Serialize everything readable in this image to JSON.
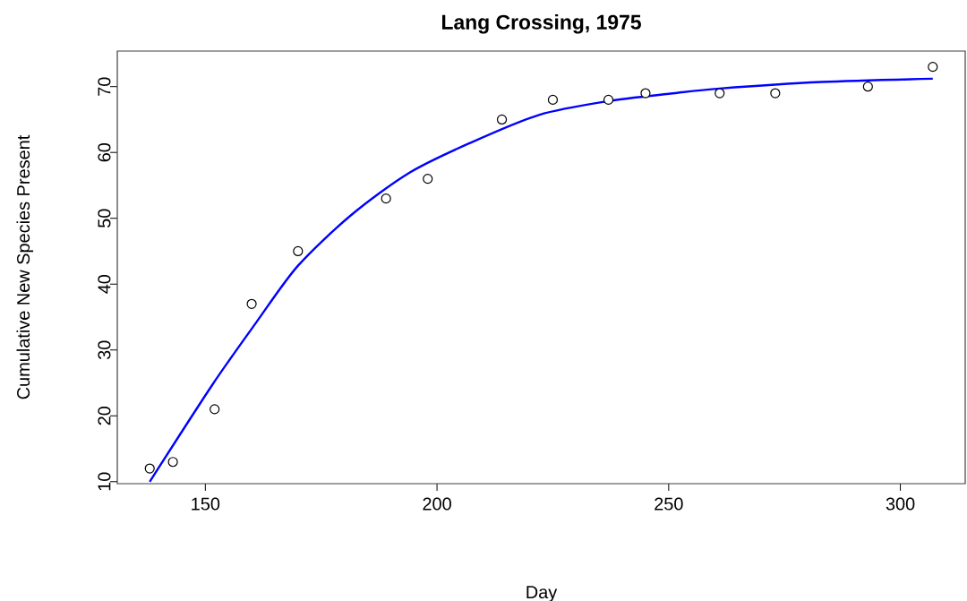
{
  "chart_data": {
    "type": "scatter",
    "title": "Lang Crossing, 1975",
    "xlabel": "Day",
    "ylabel": "Cumulative New Species Present",
    "xlim": [
      131,
      314
    ],
    "ylim": [
      9.7,
      75.4
    ],
    "xticks": [
      150,
      200,
      250,
      300
    ],
    "yticks": [
      10,
      20,
      30,
      40,
      50,
      60,
      70
    ],
    "series": [
      {
        "type": "scatter",
        "color": "#000000",
        "marker": "circle",
        "x": [
          138,
          143,
          152,
          160,
          170,
          189,
          198,
          214,
          225,
          237,
          245,
          261,
          273,
          293,
          307
        ],
        "values": [
          12,
          13,
          21,
          37,
          45,
          53,
          56,
          65,
          68,
          68,
          69,
          69,
          69,
          70,
          73
        ]
      },
      {
        "type": "line",
        "color": "#0000ff",
        "marker": "none",
        "line_style": "solid",
        "x": [
          138,
          151.5,
          161,
          170,
          181.5,
          194,
          207,
          222,
          237,
          250,
          261,
          283,
          307
        ],
        "values": [
          10,
          24.7,
          34.2,
          42.8,
          50.5,
          56.9,
          61.4,
          65.7,
          67.8,
          68.9,
          69.7,
          70.7,
          71.2
        ]
      }
    ]
  }
}
